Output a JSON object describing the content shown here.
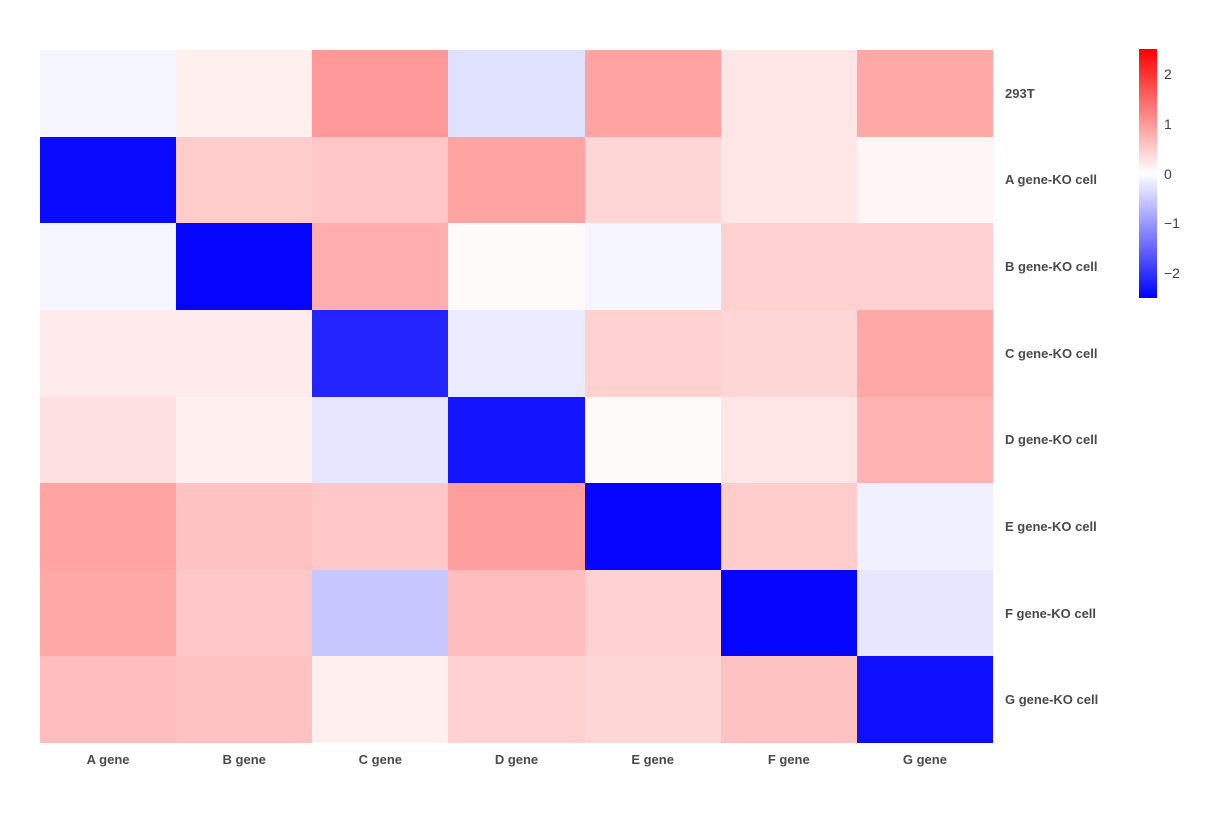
{
  "chart_data": {
    "type": "heatmap",
    "title": "",
    "xlabel": "",
    "ylabel": "",
    "rows": [
      "293T",
      "A gene-KO cell",
      "B gene-KO cell",
      "C gene-KO cell",
      "D gene-KO cell",
      "E gene-KO cell",
      "F gene-KO cell",
      "G gene-KO cell"
    ],
    "columns": [
      "A gene",
      "B gene",
      "C gene",
      "D gene",
      "E gene",
      "F gene",
      "G gene"
    ],
    "values": [
      [
        -0.1,
        0.15,
        1.0,
        -0.3,
        0.9,
        0.25,
        0.85
      ],
      [
        -2.4,
        0.5,
        0.55,
        0.9,
        0.4,
        0.25,
        0.1
      ],
      [
        -0.1,
        -2.45,
        0.8,
        0.05,
        -0.1,
        0.45,
        0.45
      ],
      [
        0.2,
        0.2,
        -2.15,
        -0.2,
        0.45,
        0.4,
        0.85
      ],
      [
        0.3,
        0.15,
        -0.25,
        -2.3,
        0.05,
        0.25,
        0.75
      ],
      [
        0.9,
        0.6,
        0.55,
        0.95,
        -2.45,
        0.5,
        -0.15
      ],
      [
        0.85,
        0.55,
        -0.55,
        0.65,
        0.45,
        -2.45,
        -0.25
      ],
      [
        0.65,
        0.6,
        0.15,
        0.45,
        0.4,
        0.6,
        -2.35
      ]
    ],
    "colormap": {
      "style": "blue-white-red",
      "negative_color": "#0000ff",
      "center_color": "#ffffff",
      "positive_color": "#ff0000",
      "vmin": -2.5,
      "vmax": 2.5,
      "center": 0
    },
    "colorbar": {
      "position": "right",
      "tick_values": [
        2,
        1,
        0,
        -1,
        -2
      ],
      "tick_labels": [
        "2",
        "1",
        "0",
        "−1",
        "−2"
      ]
    },
    "grid": false,
    "label_color": "#4a4a4a",
    "tick_label_color": "#3f3f3f"
  }
}
